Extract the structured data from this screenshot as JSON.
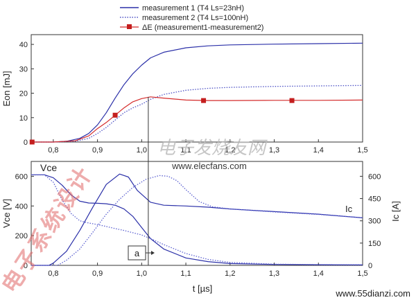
{
  "chart_data": [
    {
      "type": "line",
      "title": "",
      "xlabel": "",
      "ylabel": "Eon [mJ]",
      "xlim": [
        0.75,
        1.5
      ],
      "ylim": [
        0,
        44
      ],
      "x_ticks": [
        "0,8",
        "0,9",
        "1,0",
        "1,1",
        "1,2",
        "1,3",
        "1,4",
        "1,5"
      ],
      "y_ticks": [
        "0",
        "10",
        "20",
        "30",
        "40"
      ],
      "legend_position": "top-center",
      "series": [
        {
          "name": "measurement 1 (T4 Ls=23nH)",
          "color": "#2a2fa8",
          "style": "solid",
          "x": [
            0.75,
            0.8,
            0.83,
            0.86,
            0.88,
            0.9,
            0.92,
            0.94,
            0.96,
            0.98,
            1.0,
            1.02,
            1.05,
            1.1,
            1.15,
            1.2,
            1.3,
            1.4,
            1.5
          ],
          "y": [
            0,
            0,
            0.3,
            1.5,
            3.5,
            7,
            12,
            18,
            23.5,
            28,
            31.5,
            34.5,
            36.8,
            38.6,
            39.4,
            39.8,
            40.1,
            40.3,
            40.5
          ]
        },
        {
          "name": "measurement 2 (T4 Ls=100nH)",
          "color": "#4a4fc4",
          "style": "dotted",
          "x": [
            0.75,
            0.8,
            0.85,
            0.88,
            0.9,
            0.92,
            0.94,
            0.96,
            0.98,
            1.0,
            1.02,
            1.05,
            1.1,
            1.15,
            1.2,
            1.3,
            1.4,
            1.5
          ],
          "y": [
            0,
            0,
            0.3,
            1.5,
            3.5,
            6,
            9,
            12,
            14,
            15.5,
            17.5,
            19.5,
            21.2,
            22,
            22.4,
            22.8,
            23,
            23.2
          ]
        },
        {
          "name": "ΔE (measurement1-measurement2)",
          "color": "#d42a2a",
          "style": "solid",
          "marker": "square",
          "x": [
            0.75,
            0.8,
            0.85,
            0.88,
            0.9,
            0.92,
            0.94,
            0.96,
            0.98,
            1.0,
            1.02,
            1.05,
            1.1,
            1.15,
            1.2,
            1.3,
            1.4,
            1.5
          ],
          "y": [
            0,
            0,
            0.5,
            2.5,
            5.5,
            8,
            11,
            14,
            16.5,
            17.8,
            18.5,
            18,
            17.2,
            17,
            17,
            17.1,
            17.1,
            17.2
          ],
          "marker_points": [
            {
              "x": 0.752,
              "y": 0
            },
            {
              "x": 0.94,
              "y": 11
            },
            {
              "x": 1.14,
              "y": 17
            },
            {
              "x": 1.34,
              "y": 17
            }
          ]
        }
      ]
    },
    {
      "type": "line",
      "title": "",
      "xlabel": "t [µs]",
      "ylabel": "Vce [V]",
      "ylabel_right": "Ic [A]",
      "xlim": [
        0.75,
        1.5
      ],
      "ylim": [
        0,
        700
      ],
      "ylim_right": [
        0,
        700
      ],
      "x_ticks": [
        "0,8",
        "0,9",
        "1,0",
        "1,1",
        "1,2",
        "1,3",
        "1,4",
        "1,5"
      ],
      "y_ticks": [
        "0",
        "200",
        "400",
        "600"
      ],
      "y_ticks_right": [
        "0",
        "150",
        "300",
        "450",
        "600"
      ],
      "annotations": [
        "Vce",
        "Ic",
        "a"
      ],
      "series": [
        {
          "name": "Vce measurement 1",
          "color": "#2a2fa8",
          "style": "solid",
          "x": [
            0.75,
            0.78,
            0.8,
            0.82,
            0.84,
            0.86,
            0.88,
            0.9,
            0.92,
            0.94,
            0.96,
            0.98,
            1.0,
            1.02,
            1.05,
            1.1,
            1.15,
            1.2,
            1.3,
            1.4,
            1.5
          ],
          "y": [
            610,
            610,
            590,
            540,
            475,
            432,
            420,
            418,
            415,
            405,
            380,
            330,
            255,
            180,
            110,
            50,
            25,
            12,
            6,
            4,
            3
          ]
        },
        {
          "name": "Vce measurement 2",
          "color": "#5a5fd0",
          "style": "dotted",
          "x": [
            0.75,
            0.78,
            0.8,
            0.82,
            0.84,
            0.86,
            0.88,
            0.9,
            0.92,
            0.94,
            0.96,
            0.98,
            1.0,
            1.02,
            1.05,
            1.1,
            1.15,
            1.2,
            1.3,
            1.4,
            1.5
          ],
          "y": [
            610,
            610,
            560,
            440,
            350,
            300,
            285,
            275,
            262,
            248,
            235,
            220,
            205,
            180,
            140,
            80,
            40,
            20,
            8,
            5,
            4
          ]
        },
        {
          "name": "Ic measurement 1",
          "color": "#2a2fa8",
          "style": "solid",
          "x": [
            0.75,
            0.79,
            0.8,
            0.83,
            0.86,
            0.89,
            0.92,
            0.95,
            0.97,
            0.99,
            1.02,
            1.05,
            1.1,
            1.15,
            1.2,
            1.3,
            1.4,
            1.5
          ],
          "y": [
            0,
            0,
            15,
            95,
            235,
            395,
            545,
            615,
            595,
            505,
            425,
            405,
            400,
            392,
            380,
            362,
            345,
            320
          ]
        },
        {
          "name": "Ic measurement 2",
          "color": "#5a5fd0",
          "style": "dotted",
          "x": [
            0.75,
            0.81,
            0.83,
            0.86,
            0.89,
            0.92,
            0.95,
            0.98,
            1.01,
            1.04,
            1.06,
            1.08,
            1.1,
            1.13,
            1.16,
            1.2,
            1.3,
            1.4,
            1.5
          ],
          "y": [
            0,
            0,
            35,
            110,
            225,
            345,
            445,
            525,
            580,
            605,
            600,
            570,
            510,
            430,
            395,
            380,
            360,
            343,
            320
          ]
        }
      ]
    }
  ],
  "cursor_line_x": 1.015,
  "watermark": {
    "diagonal": "电子系统设计",
    "center_cn": "电子发烧友网",
    "center_url": "www.elecfans.com",
    "footer_url": "www.55dianzi.com"
  }
}
